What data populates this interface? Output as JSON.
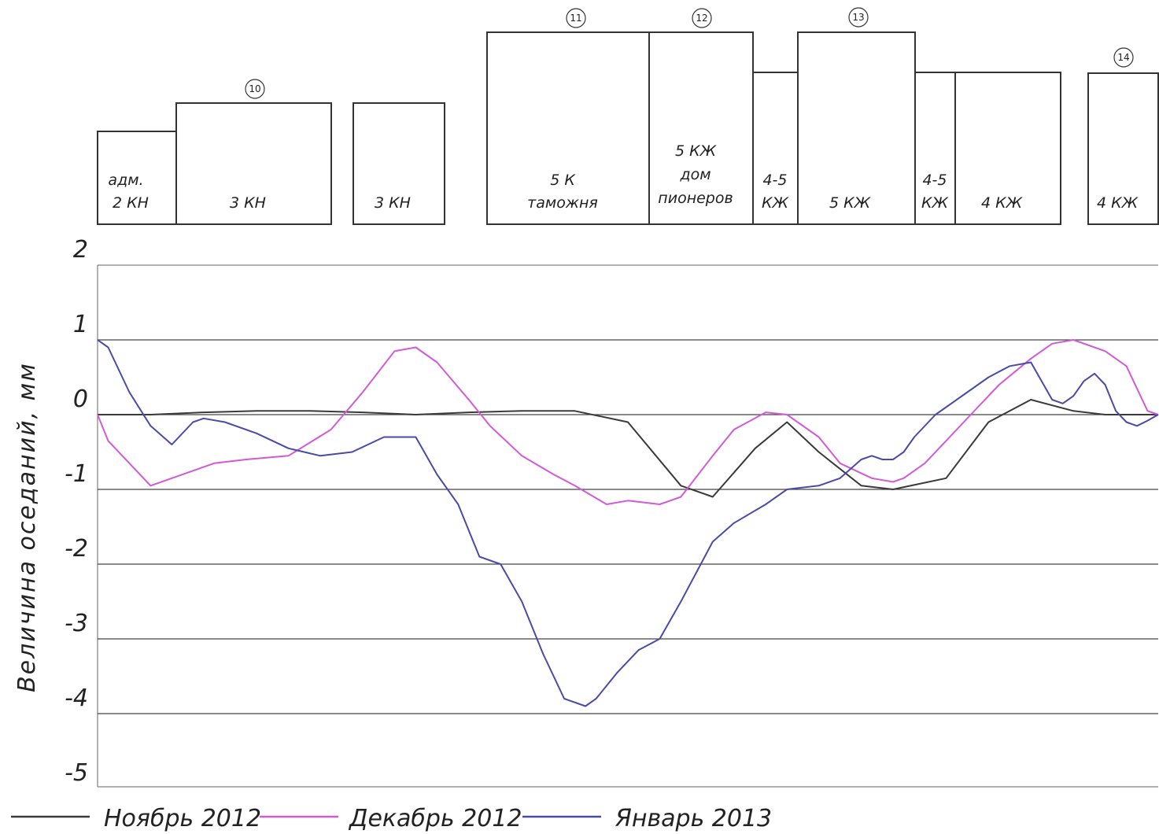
{
  "chart_data": {
    "type": "line",
    "title": "",
    "xlabel": "",
    "ylabel": "Величина оседаний, мм",
    "ylim": [
      -5,
      2
    ],
    "yticks": [
      2,
      1,
      0,
      -1,
      -2,
      -3,
      -4,
      -5
    ],
    "ytick_labels": [
      "2",
      "1",
      "0",
      "-1",
      "-2",
      "-3",
      "-4",
      "-5"
    ],
    "grid": true,
    "legend_position": "bottom",
    "series": [
      {
        "name": "Ноябрь 2012",
        "color": "#3a3a3a",
        "x": [
          0,
          5,
          10,
          15,
          20,
          25,
          30,
          35,
          40,
          45,
          50,
          55,
          58,
          62,
          65,
          68,
          72,
          75,
          80,
          84,
          88,
          92,
          95,
          98,
          100
        ],
        "y": [
          0,
          0,
          0.03,
          0.05,
          0.05,
          0.03,
          0,
          0.03,
          0.05,
          0.05,
          -0.1,
          -0.95,
          -1.1,
          -0.45,
          -0.1,
          -0.5,
          -0.95,
          -1,
          -0.85,
          -0.1,
          0.2,
          0.05,
          0,
          0,
          0
        ]
      },
      {
        "name": "Декабрь 2012",
        "color": "#d25ad6",
        "x": [
          0,
          1,
          3,
          5,
          7,
          9,
          11,
          14,
          18,
          22,
          25,
          28,
          30,
          32,
          35,
          37,
          40,
          43,
          45,
          48,
          50,
          53,
          55,
          58,
          60,
          63,
          65,
          68,
          70,
          73,
          75,
          76,
          78,
          80,
          83,
          85,
          88,
          90,
          92,
          95,
          97,
          98,
          99,
          100
        ],
        "y": [
          0,
          -0.35,
          -0.65,
          -0.95,
          -0.85,
          -0.75,
          -0.65,
          -0.6,
          -0.55,
          -0.2,
          0.3,
          0.85,
          0.9,
          0.7,
          0.2,
          -0.15,
          -0.55,
          -0.8,
          -0.95,
          -1.2,
          -1.15,
          -1.2,
          -1.1,
          -0.55,
          -0.2,
          0.03,
          0,
          -0.3,
          -0.65,
          -0.85,
          -0.9,
          -0.85,
          -0.65,
          -0.35,
          0.1,
          0.4,
          0.75,
          0.95,
          1.0,
          0.85,
          0.65,
          0.35,
          0.05,
          0
        ]
      },
      {
        "name": "Январь 2013",
        "color": "#4a4aa8",
        "x": [
          0,
          1,
          3,
          5,
          7,
          9,
          10,
          12,
          15,
          18,
          21,
          24,
          27,
          30,
          32,
          34,
          36,
          38,
          40,
          42,
          44,
          46,
          47,
          49,
          51,
          53,
          55,
          58,
          60,
          63,
          65,
          68,
          70,
          72,
          73,
          74,
          75,
          76,
          77,
          79,
          81,
          82,
          84,
          86,
          88,
          90,
          91,
          92,
          93,
          94,
          95,
          96,
          97,
          98,
          99,
          100
        ],
        "y": [
          1,
          0.9,
          0.3,
          -0.15,
          -0.4,
          -0.1,
          -0.05,
          -0.1,
          -0.25,
          -0.45,
          -0.55,
          -0.5,
          -0.3,
          -0.3,
          -0.8,
          -1.2,
          -1.9,
          -2.0,
          -2.5,
          -3.2,
          -3.8,
          -3.9,
          -3.8,
          -3.45,
          -3.15,
          -3.0,
          -2.5,
          -1.7,
          -1.45,
          -1.2,
          -1.0,
          -0.95,
          -0.85,
          -0.6,
          -0.55,
          -0.6,
          -0.6,
          -0.5,
          -0.3,
          0,
          0.2,
          0.3,
          0.5,
          0.65,
          0.7,
          0.2,
          0.15,
          0.25,
          0.45,
          0.55,
          0.4,
          0.05,
          -0.1,
          -0.15,
          -0.08,
          0
        ]
      }
    ]
  },
  "buildings": [
    {
      "id": "adm-2kn",
      "lines": [
        "адм.",
        "2 КН"
      ],
      "number": ""
    },
    {
      "id": "3kn-a",
      "lines": [
        "3 КН"
      ],
      "number": "10"
    },
    {
      "id": "3kn-b",
      "lines": [
        "3 КН"
      ],
      "number": ""
    },
    {
      "id": "5k-customs",
      "lines": [
        "5 К",
        "таможня"
      ],
      "number": "11"
    },
    {
      "id": "5kzh-pioneers",
      "lines": [
        "5 КЖ",
        "дом",
        "пионеров"
      ],
      "number": "12"
    },
    {
      "id": "45kzh-a",
      "lines": [
        "4-5",
        "КЖ"
      ],
      "number": ""
    },
    {
      "id": "5kzh",
      "lines": [
        "5 КЖ"
      ],
      "number": "13"
    },
    {
      "id": "45kzh-b",
      "lines": [
        "4-5",
        "КЖ"
      ],
      "number": ""
    },
    {
      "id": "4kzh-a",
      "lines": [
        "4 КЖ"
      ],
      "number": ""
    },
    {
      "id": "4kzh-b",
      "lines": [
        "4 КЖ"
      ],
      "number": "14"
    }
  ]
}
